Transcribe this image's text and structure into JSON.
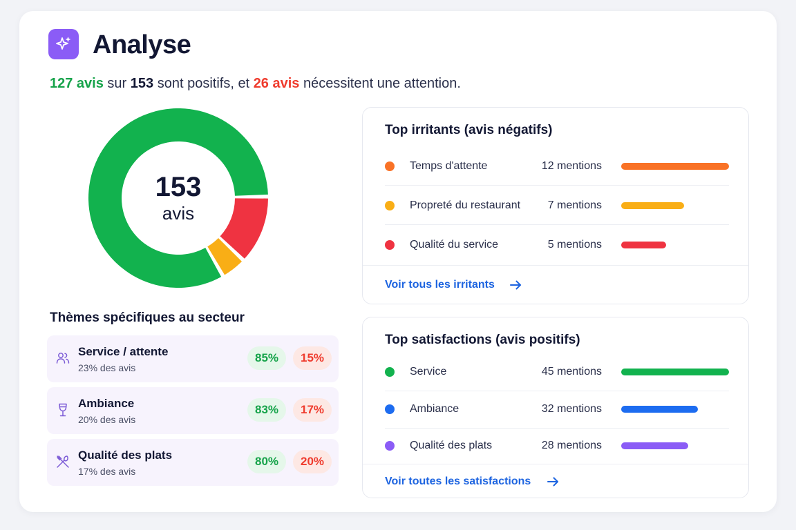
{
  "header": {
    "title": "Analyse",
    "icon": "sparkles-icon",
    "icon_bg": "#8b5cf6"
  },
  "summary": {
    "positive_count": "127 avis",
    "word_sur": "sur",
    "total": "153",
    "text_mid": "sont positifs, et",
    "attention_count": "26 avis",
    "text_end": "nécessitent une attention."
  },
  "donut": {
    "total": "153",
    "unit": "avis",
    "segments": [
      {
        "name": "positifs",
        "value": 127,
        "color": "#12b24e"
      },
      {
        "name": "rouge",
        "value": 19,
        "color": "#ef3341"
      },
      {
        "name": "jaune",
        "value": 7,
        "color": "#f9ae16"
      }
    ]
  },
  "themes": {
    "title": "Thèmes spécifiques au secteur",
    "items": [
      {
        "icon": "users-icon",
        "name": "Service / attente",
        "share": "23% des avis",
        "positive": "85%",
        "negative": "15%"
      },
      {
        "icon": "wine-glass-icon",
        "name": "Ambiance",
        "share": "20% des avis",
        "positive": "83%",
        "negative": "17%"
      },
      {
        "icon": "utensils-crossed-icon",
        "name": "Qualité des plats",
        "share": "17% des avis",
        "positive": "80%",
        "negative": "20%"
      }
    ]
  },
  "irritants": {
    "title": "Top irritants (avis négatifs)",
    "items": [
      {
        "label": "Temps d'attente",
        "count": "12 mentions",
        "value": 12,
        "color": "#f97226"
      },
      {
        "label": "Propreté du restaurant",
        "count": "7 mentions",
        "value": 7,
        "color": "#f9ae16"
      },
      {
        "label": "Qualité du service",
        "count": "5 mentions",
        "value": 5,
        "color": "#ef3341"
      }
    ],
    "link": "Voir tous les irritants"
  },
  "satisfactions": {
    "title": "Top satisfactions (avis positifs)",
    "items": [
      {
        "label": "Service",
        "count": "45 mentions",
        "value": 45,
        "color": "#12b24e"
      },
      {
        "label": "Ambiance",
        "count": "32 mentions",
        "value": 32,
        "color": "#1d6cf0"
      },
      {
        "label": "Qualité des plats",
        "count": "28 mentions",
        "value": 28,
        "color": "#8b5cf6"
      }
    ],
    "link": "Voir toutes les satisfactions"
  }
}
